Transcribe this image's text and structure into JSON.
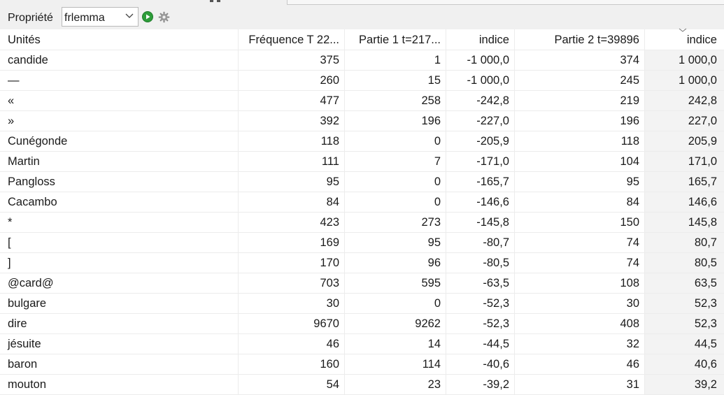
{
  "toolbar": {
    "property_label": "Propriété",
    "property_value": "frlemma",
    "run_icon": "play-icon",
    "settings_icon": "gear-icon",
    "run_color": "#2e9d3a"
  },
  "table": {
    "columns": [
      "Unités",
      "Fréquence T 22...",
      "Partie 1 t=217...",
      "indice",
      "Partie 2 t=39896",
      "indice"
    ],
    "rows": [
      [
        "candide",
        "375",
        "1",
        "-1 000,0",
        "374",
        "1 000,0"
      ],
      [
        "—",
        "260",
        "15",
        "-1 000,0",
        "245",
        "1 000,0"
      ],
      [
        "«",
        "477",
        "258",
        "-242,8",
        "219",
        "242,8"
      ],
      [
        "»",
        "392",
        "196",
        "-227,0",
        "196",
        "227,0"
      ],
      [
        "Cunégonde",
        "118",
        "0",
        "-205,9",
        "118",
        "205,9"
      ],
      [
        "Martin",
        "111",
        "7",
        "-171,0",
        "104",
        "171,0"
      ],
      [
        "Pangloss",
        "95",
        "0",
        "-165,7",
        "95",
        "165,7"
      ],
      [
        "Cacambo",
        "84",
        "0",
        "-146,6",
        "84",
        "146,6"
      ],
      [
        "*",
        "423",
        "273",
        "-145,8",
        "150",
        "145,8"
      ],
      [
        "[",
        "169",
        "95",
        "-80,7",
        "74",
        "80,7"
      ],
      [
        "]",
        "170",
        "96",
        "-80,5",
        "74",
        "80,5"
      ],
      [
        "@card@",
        "703",
        "595",
        "-63,5",
        "108",
        "63,5"
      ],
      [
        "bulgare",
        "30",
        "0",
        "-52,3",
        "30",
        "52,3"
      ],
      [
        "dire",
        "9670",
        "9262",
        "-52,3",
        "408",
        "52,3"
      ],
      [
        "jésuite",
        "46",
        "14",
        "-44,5",
        "32",
        "44,5"
      ],
      [
        "baron",
        "160",
        "114",
        "-40,6",
        "46",
        "40,6"
      ],
      [
        "mouton",
        "54",
        "23",
        "-39,2",
        "31",
        "39,2"
      ]
    ]
  }
}
